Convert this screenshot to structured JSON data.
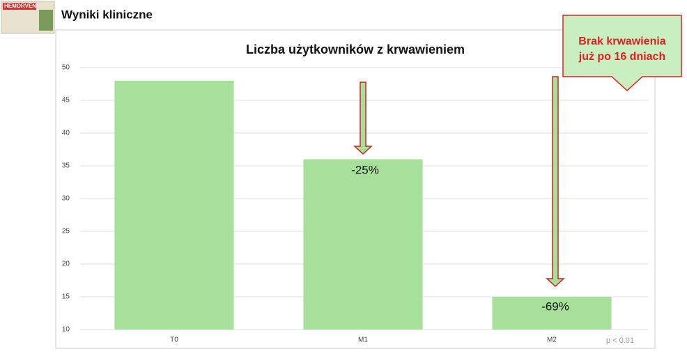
{
  "header": {
    "product": "HEMORVEN",
    "title": "Wyniki kliniczne"
  },
  "chart_data": {
    "type": "bar",
    "title": "Liczba użytkowników z krwawieniem",
    "categories": [
      "T0",
      "M1",
      "M2"
    ],
    "values": [
      48,
      36,
      15
    ],
    "color": "#a6e09a",
    "ylim": [
      10,
      50
    ],
    "yticks": [
      10,
      15,
      20,
      25,
      30,
      35,
      40,
      45,
      50
    ],
    "grid": true,
    "annotations": [
      "-25%",
      "-69%",
      "Brak krwawienia",
      "już po 16 dniach",
      "p < 0.01"
    ]
  }
}
